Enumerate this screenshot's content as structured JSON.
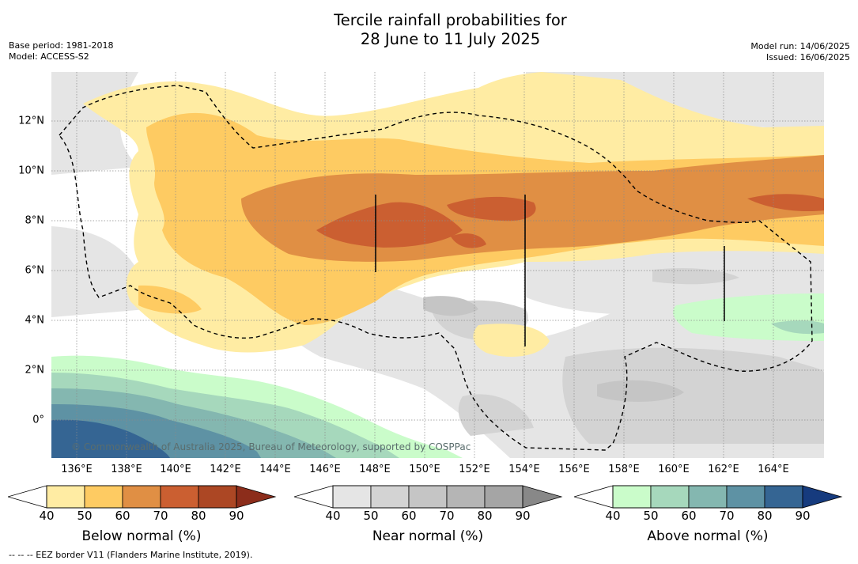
{
  "title_line1": "Tercile rainfall probabilities for",
  "title_line2": "28 June to 11 July 2025",
  "base_period": "Base period: 1981-2018",
  "model": "Model: ACCESS-S2",
  "model_run": "Model run: 14/06/2025",
  "issued": "Issued: 16/06/2025",
  "lon_labels": [
    "136°E",
    "138°E",
    "140°E",
    "142°E",
    "144°E",
    "146°E",
    "148°E",
    "150°E",
    "152°E",
    "154°E",
    "156°E",
    "158°E",
    "160°E",
    "162°E",
    "164°E"
  ],
  "lat_labels": [
    "12°N",
    "10°N",
    "8°N",
    "6°N",
    "4°N",
    "2°N",
    "0°"
  ],
  "copyright": "© Commonwealth of Australia 2025, Bureau of Meteorology, supported by COSPPac",
  "footnote": "-- -- -- EEZ border V11 (Flanders Marine Institute, 2019).",
  "colorbars": [
    {
      "title": "Below normal (%)",
      "ticks": [
        "40",
        "50",
        "60",
        "70",
        "80",
        "90"
      ],
      "colors": [
        "#ffeca3",
        "#fecb62",
        "#e08f44",
        "#cb5f31",
        "#ac4724",
        "#8c2d1b"
      ]
    },
    {
      "title": "Near normal (%)",
      "ticks": [
        "40",
        "50",
        "60",
        "70",
        "80",
        "90"
      ],
      "colors": [
        "#e5e5e5",
        "#d3d3d3",
        "#c5c5c5",
        "#b5b5b5",
        "#a5a5a5",
        "#888888"
      ]
    },
    {
      "title": "Above normal (%)",
      "ticks": [
        "40",
        "50",
        "60",
        "70",
        "80",
        "90"
      ],
      "colors": [
        "#cafcca",
        "#a6d8bc",
        "#84b7b0",
        "#5e92a4",
        "#356593",
        "#163b7e"
      ]
    }
  ],
  "map_extent": {
    "lon": [
      135,
      166
    ],
    "lat": [
      -1.5,
      14
    ]
  }
}
